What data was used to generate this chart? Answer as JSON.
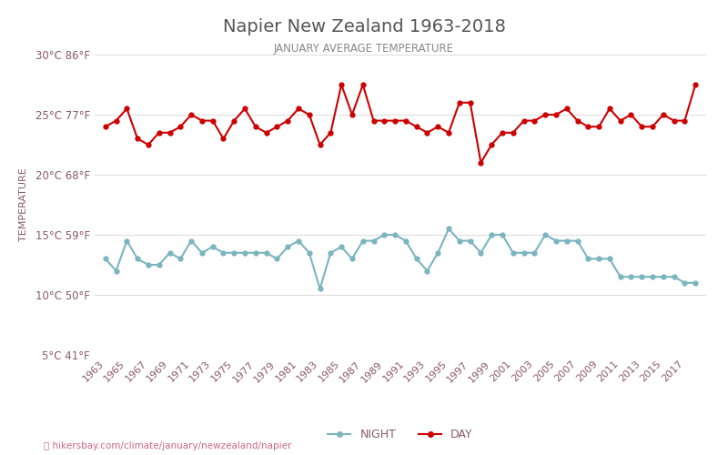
{
  "title": "Napier New Zealand 1963-2018",
  "subtitle": "JANUARY AVERAGE TEMPERATURE",
  "ylabel": "TEMPERATURE",
  "xlabel_url": "hikersbay.com/climate/january/newzealand/napier",
  "years": [
    1963,
    1964,
    1965,
    1966,
    1967,
    1968,
    1969,
    1970,
    1971,
    1972,
    1973,
    1974,
    1975,
    1976,
    1977,
    1978,
    1979,
    1980,
    1981,
    1982,
    1983,
    1984,
    1985,
    1986,
    1987,
    1988,
    1989,
    1990,
    1991,
    1992,
    1993,
    1994,
    1995,
    1996,
    1997,
    1998,
    1999,
    2000,
    2001,
    2002,
    2003,
    2004,
    2005,
    2006,
    2007,
    2008,
    2009,
    2010,
    2011,
    2012,
    2013,
    2014,
    2015,
    2016,
    2017,
    2018
  ],
  "day_temps": [
    24.0,
    24.5,
    25.5,
    23.0,
    22.5,
    23.5,
    23.5,
    24.0,
    25.0,
    24.5,
    24.5,
    23.0,
    24.5,
    25.5,
    24.0,
    23.5,
    24.0,
    24.5,
    25.5,
    25.0,
    22.5,
    23.5,
    27.5,
    25.0,
    27.5,
    24.5,
    24.5,
    24.5,
    24.5,
    24.0,
    23.5,
    24.0,
    23.5,
    26.0,
    26.0,
    21.0,
    22.5,
    23.5,
    23.5,
    24.5,
    24.5,
    25.0,
    25.0,
    25.5,
    24.5,
    24.0,
    24.0,
    25.5,
    24.5,
    25.0,
    24.0,
    24.0,
    25.0,
    24.5,
    24.5,
    27.5
  ],
  "night_temps": [
    13.0,
    12.0,
    14.5,
    13.0,
    12.5,
    12.5,
    13.5,
    13.0,
    14.5,
    13.5,
    14.0,
    13.5,
    13.5,
    13.5,
    13.5,
    13.5,
    13.0,
    14.0,
    14.5,
    13.5,
    10.5,
    13.5,
    14.0,
    13.0,
    14.5,
    14.5,
    15.0,
    15.0,
    14.5,
    13.0,
    12.0,
    13.5,
    15.5,
    14.5,
    14.5,
    13.5,
    15.0,
    15.0,
    13.5,
    13.5,
    13.5,
    15.0,
    14.5,
    14.5,
    14.5,
    13.0,
    13.0,
    13.0,
    11.5,
    11.5,
    11.5,
    11.5,
    11.5,
    11.5,
    11.0,
    11.0
  ],
  "day_color": "#cc0000",
  "night_color": "#7ab5c0",
  "marker_size": 3.5,
  "line_width": 1.5,
  "ylim": [
    5,
    30
  ],
  "yticks_c": [
    5,
    10,
    15,
    20,
    25,
    30
  ],
  "yticks_f": [
    41,
    50,
    59,
    68,
    77,
    86
  ],
  "background_color": "#ffffff",
  "grid_color": "#dddddd",
  "title_color": "#555555",
  "subtitle_color": "#888888",
  "axis_label_color": "#8a5a6a",
  "tick_label_color": "#8a5a6a",
  "url_color": "#cc6680"
}
